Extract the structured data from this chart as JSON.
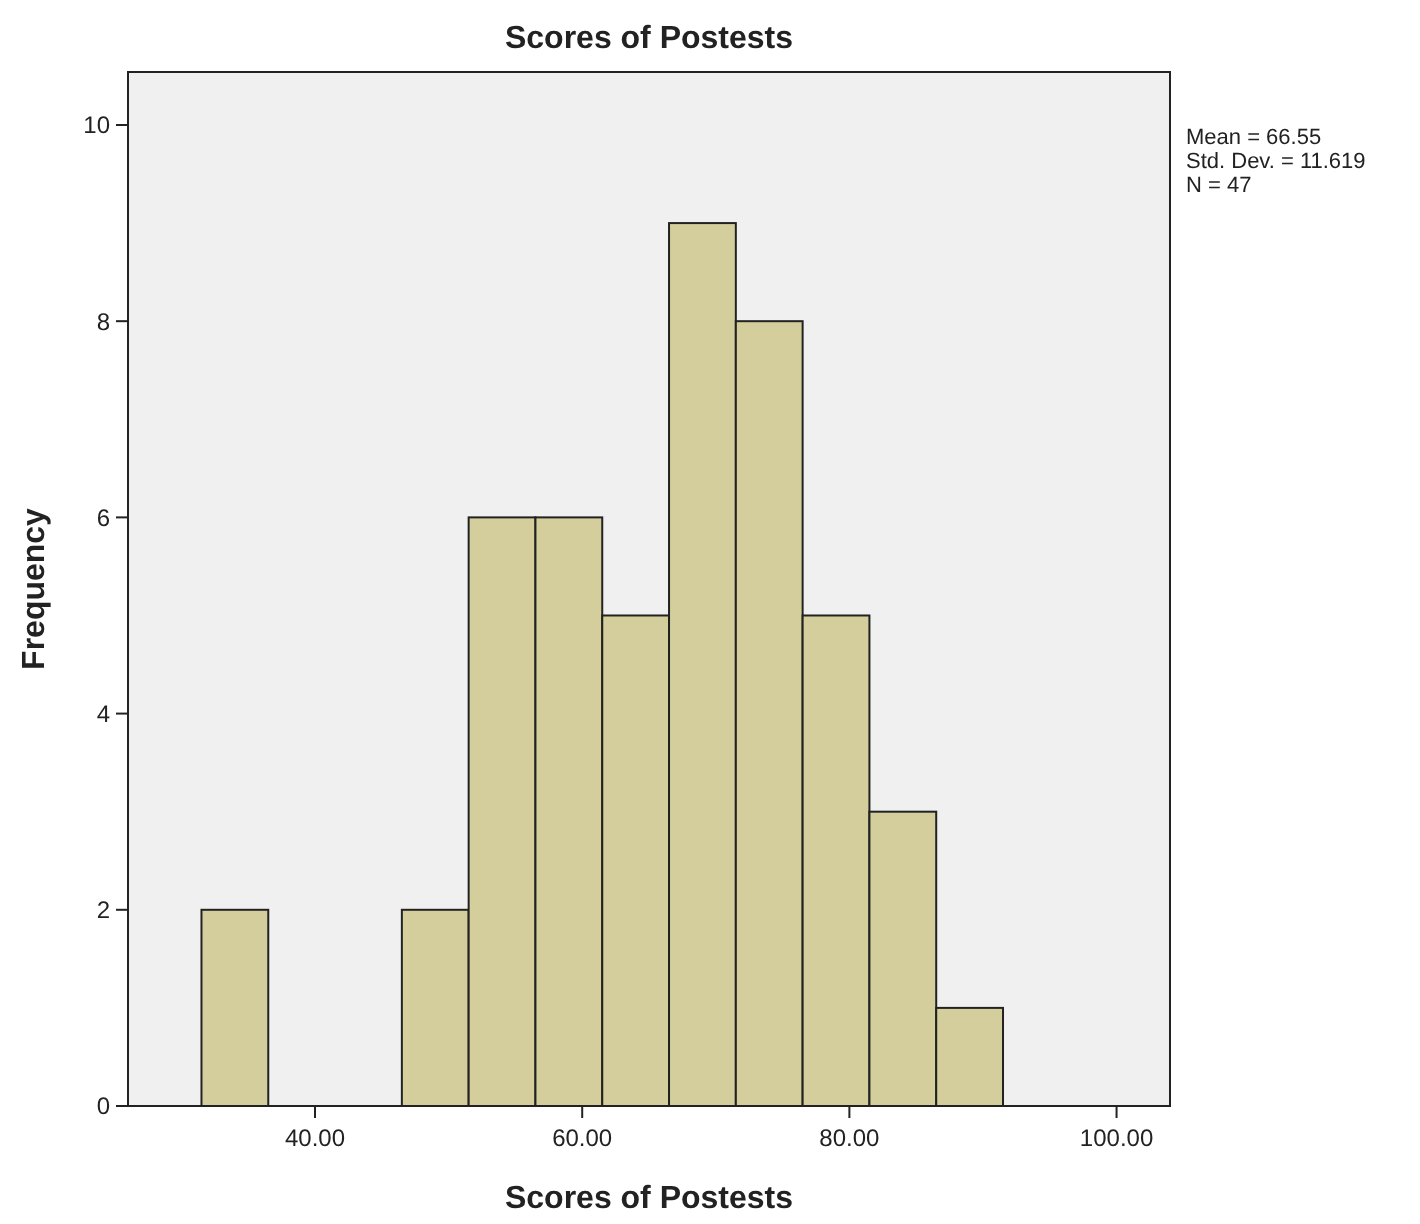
{
  "chart_data": {
    "type": "histogram",
    "title": "Scores of Postests",
    "xlabel": "Scores of Postests",
    "ylabel": "Frequency",
    "bins": [
      31.5,
      36.5,
      41.5,
      46.5,
      51.5,
      56.5,
      61.5,
      66.5,
      71.5,
      76.5,
      81.5,
      86.5,
      91.5
    ],
    "values": [
      2,
      0,
      0,
      2,
      6,
      6,
      5,
      9,
      8,
      5,
      3,
      1
    ],
    "color": "#d3ce9b",
    "xlim": [
      26,
      104
    ],
    "xticks": [
      {
        "value": 40,
        "label": "40.00"
      },
      {
        "value": 60,
        "label": "60.00"
      },
      {
        "value": 80,
        "label": "80.00"
      },
      {
        "value": 100,
        "label": "100.00"
      }
    ],
    "ylim": [
      0,
      10.54
    ],
    "yticks": [
      0,
      2,
      4,
      6,
      8,
      10
    ],
    "grid": false,
    "annotations": [
      "Mean = 66.55",
      "Std. Dev. = 11.619",
      "N = 47"
    ]
  }
}
